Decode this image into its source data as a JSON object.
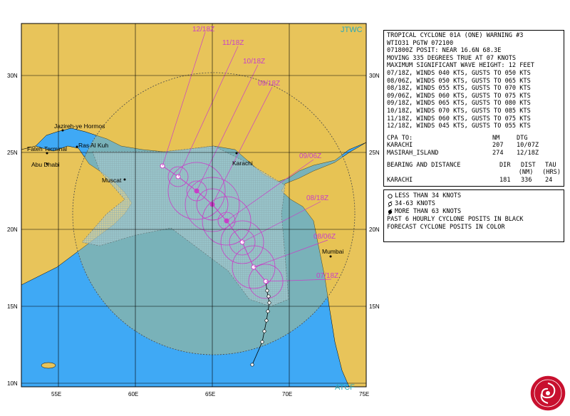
{
  "map": {
    "corner_label_top": "JTWC",
    "corner_label_bottom": "ATCF",
    "lat_labels": [
      "30N",
      "25N",
      "20N",
      "15N",
      "10N"
    ],
    "lon_labels": [
      "55E",
      "60E",
      "65E",
      "70E",
      "75E"
    ],
    "place_labels": [
      {
        "name": "Jazireh-ye Hormos",
        "id": "jazireh"
      },
      {
        "name": "Fateh Terminal",
        "id": "fateh"
      },
      {
        "name": "Ras Al Kuh",
        "id": "ras"
      },
      {
        "name": "Abu Dhabi",
        "id": "abudhabi"
      },
      {
        "name": "Muscat",
        "id": "muscat"
      },
      {
        "name": "Karachi",
        "id": "karachi"
      },
      {
        "name": "Mumbai",
        "id": "mumbai"
      }
    ],
    "forecast_labels": [
      "12/18Z",
      "11/18Z",
      "10/18Z",
      "09/18Z",
      "09/06Z",
      "08/18Z",
      "08/06Z",
      "07/18Z"
    ],
    "colors": {
      "land": "#e8c45a",
      "ocean": "#3fa9f5",
      "track": "#c83ec8",
      "grid": "#000000",
      "danger_fill": "#b2d4d8",
      "label": "#2aa8b8"
    }
  },
  "warning": {
    "title": "TROPICAL CYCLONE 01A (ONE) WARNING #3",
    "header": "WTIO31 PGTW 072100",
    "posit": "071800Z POSIT: NEAR 16.6N 68.3E",
    "moving": "MOVING 335 DEGREES TRUE AT 07 KNOTS",
    "wave": "MAXIMUM SIGNIFICANT WAVE HEIGHT: 12 FEET",
    "forecasts": [
      "07/18Z, WINDS 040 KTS, GUSTS TO 050 KTS",
      "08/06Z, WINDS 050 KTS, GUSTS TO 065 KTS",
      "08/18Z, WINDS 055 KTS, GUSTS TO 070 KTS",
      "09/06Z, WINDS 060 KTS, GUSTS TO 075 KTS",
      "09/18Z, WINDS 065 KTS, GUSTS TO 080 KTS",
      "10/18Z, WINDS 070 KTS, GUSTS TO 085 KTS",
      "11/18Z, WINDS 060 KTS, GUSTS TO 075 KTS",
      "12/18Z, WINDS 045 KTS, GUSTS TO 055 KTS"
    ],
    "cpa_header": {
      "label": "CPA TO:",
      "nm": "NM",
      "dtg": "DTG"
    },
    "cpa_rows": [
      {
        "place": "KARACHI",
        "nm": "207",
        "dtg": "10/07Z"
      },
      {
        "place": "MASIRAH_ISLAND",
        "nm": "274",
        "dtg": "12/18Z"
      }
    ],
    "bearing_header": {
      "label": "BEARING AND DISTANCE",
      "dir": "DIR",
      "dist": "DIST",
      "tau": "TAU",
      "dist_unit": "(NM)",
      "tau_unit": "(HRS)"
    },
    "bearing_rows": [
      {
        "place": "KARACHI",
        "dir": "181",
        "dist": "336",
        "tau": "24"
      }
    ]
  },
  "legend": {
    "items": [
      "LESS THAN 34 KNOTS",
      "34-63 KNOTS",
      "MORE THAN 63 KNOTS"
    ],
    "note1": "PAST 6 HOURLY CYCLONE POSITS IN BLACK",
    "note2": "FORECAST CYCLONE POSITS IN COLOR"
  }
}
